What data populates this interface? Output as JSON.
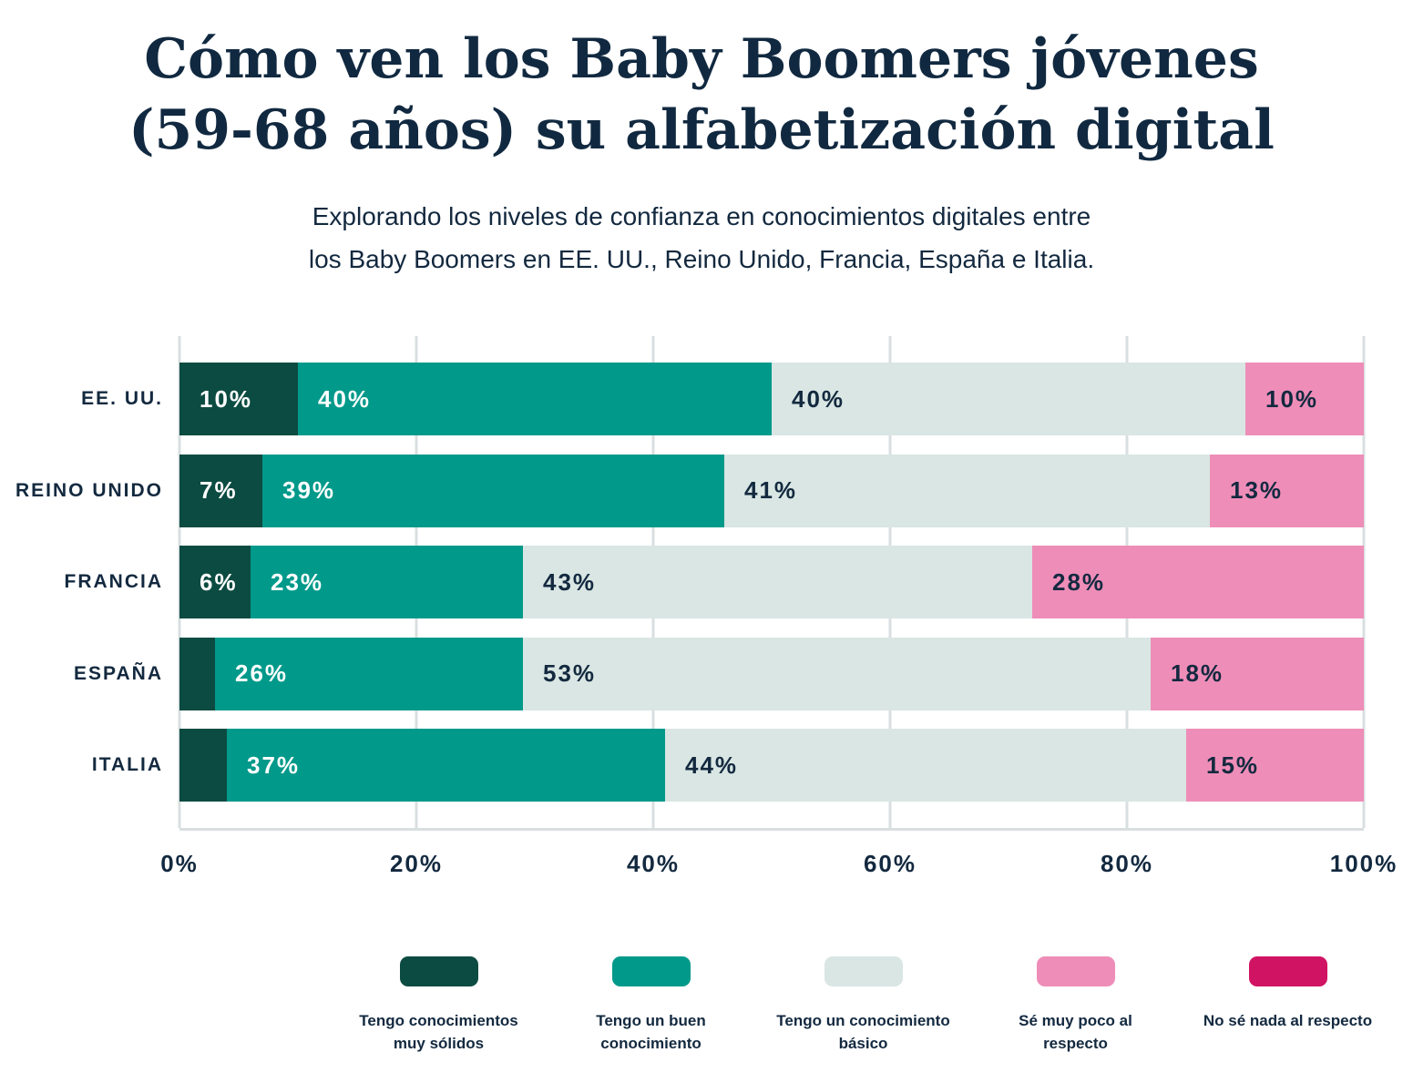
{
  "title": {
    "line1": "Cómo ven los Baby Boomers jóvenes",
    "line2": "(59-68 años) su alfabetización digital"
  },
  "subtitle": {
    "line1": "Explorando los niveles de confianza en conocimientos digitales entre",
    "line2": "los Baby Boomers en EE. UU., Reino Unido, Francia, España e Italia."
  },
  "colors": {
    "background": "#ffffff",
    "text": "#112940",
    "gridline": "#d9dfe0"
  },
  "chart_data": {
    "type": "bar",
    "stacked": true,
    "orientation": "horizontal",
    "grid": true,
    "legend_position": "bottom",
    "xlim": [
      0,
      100
    ],
    "x_tick_labels": [
      "0%",
      "20%",
      "40%",
      "60%",
      "80%",
      "100%"
    ],
    "categories": [
      "EE. UU.",
      "REINO UNIDO",
      "FRANCIA",
      "ESPAÑA",
      "ITALIA"
    ],
    "series": [
      {
        "name": "Tengo conocimientos muy sólidos",
        "color": "#0c4b41",
        "label_color": "#ffffff",
        "values": [
          10,
          7,
          6,
          3,
          4
        ],
        "labels": [
          "10%",
          "7%",
          "6%",
          null,
          null
        ]
      },
      {
        "name": "Tengo un buen conocimiento",
        "color": "#00998a",
        "label_color": "#ffffff",
        "values": [
          40,
          39,
          23,
          26,
          37
        ],
        "labels": [
          "40%",
          "39%",
          "23%",
          "26%",
          "37%"
        ]
      },
      {
        "name": "Tengo un conocimiento básico",
        "color": "#d9e6e3",
        "label_color": "#13293f",
        "values": [
          40,
          41,
          43,
          53,
          44
        ],
        "labels": [
          "40%",
          "41%",
          "43%",
          "53%",
          "44%"
        ]
      },
      {
        "name": "Sé muy poco al respecto",
        "color": "#ee8db8",
        "label_color": "#13293f",
        "values": [
          10,
          13,
          28,
          18,
          15
        ],
        "labels": [
          "10%",
          "13%",
          "28%",
          "18%",
          "15%"
        ]
      },
      {
        "name": "No sé nada al respecto",
        "color": "#d11363",
        "label_color": "#ffffff",
        "values": [
          0,
          0,
          0,
          0,
          0
        ],
        "labels": [
          null,
          null,
          null,
          null,
          null
        ]
      }
    ]
  }
}
